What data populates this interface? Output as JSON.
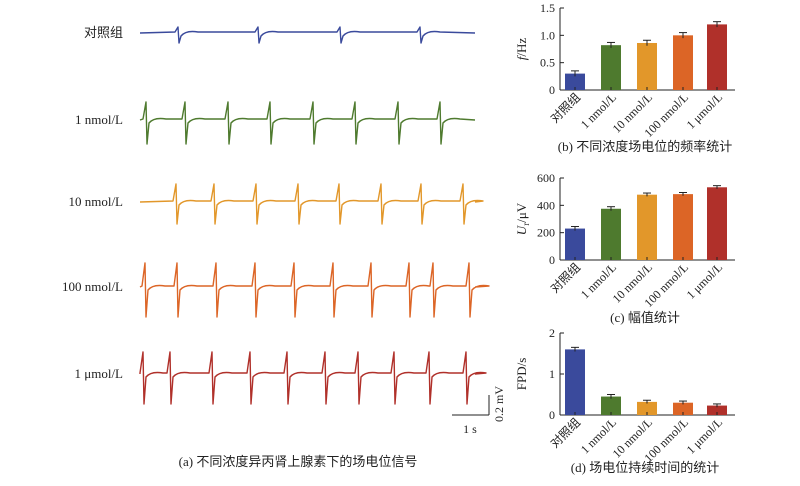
{
  "colors": {
    "control": "#3a4a9c",
    "c1nM": "#4e7a2e",
    "c10nM": "#e2972a",
    "c100nM": "#dc6526",
    "c1uM": "#b0302a",
    "axis": "#222222",
    "error": "#222222"
  },
  "panel_a": {
    "caption": "(a) 不同浓度异丙肾上腺素下的场电位信号",
    "scale_x_label": "1 s",
    "scale_y_label": "0.2 mV",
    "traces": [
      {
        "label": "对照组",
        "color_key": "control"
      },
      {
        "label": "1 nmol/L",
        "color_key": "c1nM"
      },
      {
        "label": "10 nmol/L",
        "color_key": "c10nM"
      },
      {
        "label": "100 nmol/L",
        "color_key": "c100nM"
      },
      {
        "label": "1 μmol/L",
        "color_key": "c1uM"
      }
    ]
  },
  "chart_data": [
    {
      "type": "bar",
      "panel": "b",
      "caption": "(b) 不同浓度场电位的频率统计",
      "ylabel_italic": "f",
      "ylabel_rest": "/Hz",
      "categories": [
        "对照组",
        "1 nmol/L",
        "10 nmol/L",
        "100 nmol/L",
        "1 μmol/L"
      ],
      "values": [
        0.3,
        0.82,
        0.86,
        1.0,
        1.2
      ],
      "errors": [
        0.05,
        0.05,
        0.05,
        0.05,
        0.05
      ],
      "ylim": [
        0,
        1.5
      ],
      "yticks": [
        "0",
        "0.5",
        "1.0",
        "1.5"
      ],
      "ytick_values": [
        0,
        0.5,
        1.0,
        1.5
      ]
    },
    {
      "type": "bar",
      "panel": "c",
      "caption": "(c) 幅值统计",
      "ylabel_italic": "U",
      "ylabel_sub": "r",
      "ylabel_rest": "/μV",
      "categories": [
        "对照组",
        "1 nmol/L",
        "10 nmol/L",
        "100 nmol/L",
        "1 μmol/L"
      ],
      "values": [
        230,
        375,
        478,
        482,
        532
      ],
      "errors": [
        15,
        15,
        12,
        12,
        12
      ],
      "ylim": [
        0,
        600
      ],
      "yticks": [
        "0",
        "200",
        "400",
        "600"
      ],
      "ytick_values": [
        0,
        200,
        400,
        600
      ]
    },
    {
      "type": "bar",
      "panel": "d",
      "caption": "(d) 场电位持续时间的统计",
      "ylabel_italic": "",
      "ylabel_rest": "FPD/s",
      "categories": [
        "对照组",
        "1 nmol/L",
        "10 nmol/L",
        "100 nmol/L",
        "1 μmol/L"
      ],
      "values": [
        1.6,
        0.45,
        0.32,
        0.3,
        0.23
      ],
      "errors": [
        0.05,
        0.05,
        0.04,
        0.04,
        0.04
      ],
      "ylim": [
        0,
        2
      ],
      "yticks": [
        "0",
        "1",
        "2"
      ],
      "ytick_values": [
        0,
        1,
        2
      ]
    }
  ]
}
